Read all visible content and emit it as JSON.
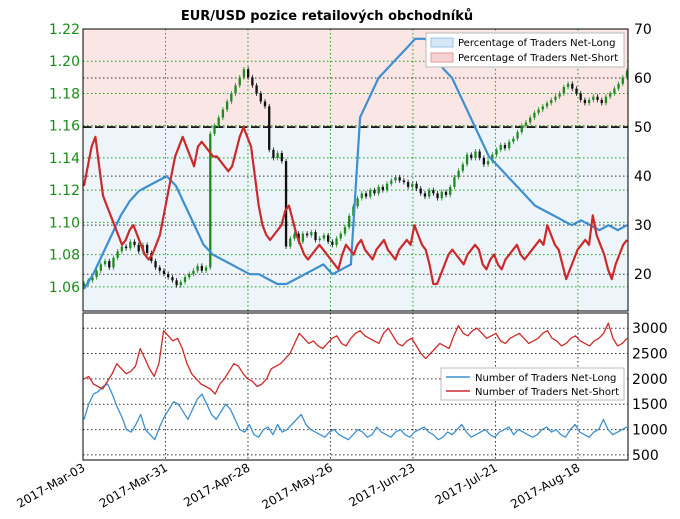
{
  "title": "EUR/USD pozice retailových obchodníků",
  "colors": {
    "candle_up": "#1f8a1f",
    "candle_down": "#111111",
    "net_long": "#3d8fd0",
    "net_short": "#cc2a2a",
    "long_fill": "#d6e8f7",
    "short_fill": "#f7d2d2",
    "grid_green": "#1fa01f",
    "grid_black": "#333333",
    "tick_green": "#1a8a1a"
  },
  "chart_data": [
    {
      "type": "line",
      "panel": "top",
      "title": "EUR/USD pozice retailových obchodníků",
      "x_tick_labels": [
        "2017-Mar-03",
        "2017-Mar-31",
        "2017-Apr-28",
        "2017-May-26",
        "2017-Jun-23",
        "2017-Jul-21",
        "2017-Aug-18"
      ],
      "x_range": [
        "2017-Mar-03",
        "2017-Sep-04"
      ],
      "price_axis": {
        "side": "left",
        "tick_labels": [
          "1.06",
          "1.08",
          "1.10",
          "1.12",
          "1.14",
          "1.16",
          "1.18",
          "1.20",
          "1.22"
        ],
        "range": [
          1.045,
          1.22
        ]
      },
      "percent_axis": {
        "side": "right",
        "tick_labels": [
          "20",
          "30",
          "40",
          "50",
          "60",
          "70"
        ],
        "range": [
          12.5,
          70
        ]
      },
      "reference_line": 50,
      "legend": {
        "position": "top-right",
        "entries": [
          "Percentage of Traders Net-Long",
          "Percentage of Traders Net-Short"
        ]
      },
      "candles_close": [
        1.062,
        1.064,
        1.066,
        1.07,
        1.074,
        1.076,
        1.072,
        1.078,
        1.082,
        1.085,
        1.084,
        1.088,
        1.086,
        1.082,
        1.086,
        1.081,
        1.076,
        1.072,
        1.07,
        1.068,
        1.066,
        1.064,
        1.061,
        1.063,
        1.066,
        1.068,
        1.07,
        1.073,
        1.07,
        1.072,
        1.155,
        1.16,
        1.165,
        1.17,
        1.175,
        1.18,
        1.185,
        1.19,
        1.195,
        1.19,
        1.185,
        1.18,
        1.175,
        1.172,
        1.145,
        1.14,
        1.143,
        1.138,
        1.085,
        1.09,
        1.093,
        1.088,
        1.093,
        1.092,
        1.094,
        1.089,
        1.09,
        1.092,
        1.088,
        1.086,
        1.09,
        1.093,
        1.097,
        1.104,
        1.11,
        1.115,
        1.118,
        1.116,
        1.12,
        1.118,
        1.122,
        1.12,
        1.124,
        1.126,
        1.128,
        1.126,
        1.125,
        1.122,
        1.124,
        1.121,
        1.118,
        1.116,
        1.12,
        1.118,
        1.115,
        1.119,
        1.117,
        1.122,
        1.128,
        1.132,
        1.136,
        1.142,
        1.14,
        1.144,
        1.14,
        1.136,
        1.138,
        1.142,
        1.145,
        1.148,
        1.146,
        1.15,
        1.152,
        1.156,
        1.16,
        1.162,
        1.165,
        1.168,
        1.17,
        1.172,
        1.174,
        1.176,
        1.178,
        1.18,
        1.184,
        1.186,
        1.183,
        1.18,
        1.176,
        1.174,
        1.176,
        1.178,
        1.176,
        1.174,
        1.178,
        1.18,
        1.183,
        1.186,
        1.19,
        1.194
      ],
      "series": [
        {
          "name": "Percentage of Traders Net-Long",
          "values": [
            17,
            20,
            24,
            28,
            32,
            35,
            37,
            38,
            39,
            40,
            38,
            34,
            30,
            26,
            24,
            23,
            22,
            21,
            20,
            20,
            19,
            18,
            18,
            19,
            20,
            21,
            22,
            20,
            21,
            22,
            52,
            56,
            60,
            62,
            64,
            66,
            68,
            68,
            67,
            62,
            60,
            56,
            52,
            48,
            44,
            42,
            40,
            38,
            36,
            34,
            33,
            32,
            31,
            30,
            31,
            30,
            29,
            30,
            29,
            30
          ]
        },
        {
          "name": "Percentage of Traders Net-Short",
          "values": [
            38,
            42,
            46,
            48,
            42,
            36,
            34,
            32,
            30,
            28,
            26,
            27,
            29,
            30,
            28,
            26,
            24,
            23,
            24,
            26,
            28,
            32,
            36,
            40,
            44,
            46,
            48,
            46,
            44,
            42,
            46,
            47,
            46,
            45,
            44,
            44,
            43,
            42,
            41,
            42,
            45,
            48,
            50,
            48,
            46,
            40,
            34,
            30,
            28,
            27,
            28,
            29,
            30,
            33,
            34,
            31,
            28,
            26,
            24,
            23,
            24,
            25,
            26,
            25,
            24,
            23,
            22,
            21,
            24,
            26,
            25,
            24,
            26,
            27,
            25,
            24,
            23,
            25,
            26,
            27,
            25,
            24,
            23,
            25,
            26,
            27,
            26,
            30,
            28,
            26,
            25,
            22,
            18,
            18,
            20,
            22,
            24,
            25,
            24,
            23,
            22,
            24,
            25,
            26,
            25,
            22,
            21,
            23,
            24,
            22,
            21,
            23,
            24,
            25,
            26,
            24,
            23,
            24,
            25,
            26,
            27,
            26,
            30,
            28,
            26,
            25,
            22,
            19,
            21,
            23,
            25,
            26,
            27,
            26,
            32,
            28,
            26,
            24,
            21,
            19,
            22,
            24,
            26,
            27
          ]
        }
      ]
    },
    {
      "type": "line",
      "panel": "bottom",
      "x_tick_labels": [
        "2017-Mar-03",
        "2017-Mar-31",
        "2017-Apr-28",
        "2017-May-26",
        "2017-Jun-23",
        "2017-Jul-21",
        "2017-Aug-18"
      ],
      "y_axis": {
        "side": "right",
        "tick_labels": [
          "500",
          "1000",
          "1500",
          "2000",
          "2500",
          "3000"
        ],
        "range": [
          400,
          3300
        ]
      },
      "legend": {
        "position": "center-right",
        "entries": [
          "Number of Traders Net-Long",
          "Number of Traders Net-Short"
        ]
      },
      "series": [
        {
          "name": "Number of Traders Net-Long",
          "values": [
            1200,
            1500,
            1700,
            1750,
            1850,
            1900,
            1700,
            1450,
            1250,
            1000,
            950,
            1100,
            1300,
            1000,
            900,
            800,
            1050,
            1250,
            1400,
            1550,
            1500,
            1350,
            1200,
            1400,
            1600,
            1700,
            1500,
            1300,
            1200,
            1350,
            1500,
            1400,
            1200,
            1000,
            950,
            1100,
            900,
            850,
            1000,
            1050,
            900,
            1100,
            950,
            1000,
            1100,
            1200,
            1300,
            1100,
            1000,
            950,
            900,
            850,
            950,
            1000,
            900,
            850,
            800,
            900,
            1000,
            950,
            850,
            900,
            1050,
            950,
            900,
            850,
            950,
            1000,
            900,
            850,
            950,
            1000,
            1050,
            950,
            900,
            800,
            850,
            950,
            900,
            1000,
            1100,
            950,
            850,
            900,
            950,
            1000,
            900,
            850,
            950,
            1000,
            1050,
            900,
            1000,
            950,
            900,
            850,
            900,
            1000,
            1050,
            950,
            1000,
            900,
            850,
            1000,
            1100,
            950,
            900,
            850,
            950,
            1000,
            1200,
            1000,
            900,
            950,
            1000,
            1050
          ]
        },
        {
          "name": "Number of Traders Net-Short",
          "values": [
            2000,
            2050,
            1900,
            1850,
            1800,
            1950,
            2100,
            2300,
            2200,
            2100,
            2150,
            2250,
            2600,
            2400,
            2200,
            2050,
            2300,
            2950,
            2850,
            2750,
            2800,
            2600,
            2300,
            2100,
            2000,
            1900,
            1850,
            1800,
            1700,
            1900,
            2000,
            2150,
            2300,
            2250,
            2100,
            2000,
            1950,
            1850,
            1900,
            2000,
            2200,
            2250,
            2300,
            2400,
            2500,
            2700,
            2900,
            2800,
            2700,
            2750,
            2650,
            2600,
            2700,
            2800,
            2850,
            2700,
            2650,
            2800,
            2900,
            2950,
            2850,
            2800,
            2750,
            2700,
            2900,
            3000,
            2850,
            2700,
            2650,
            2750,
            2800,
            2650,
            2500,
            2400,
            2500,
            2600,
            2700,
            2650,
            2600,
            2850,
            3050,
            2900,
            2850,
            2950,
            3000,
            2900,
            2800,
            2850,
            2900,
            2750,
            2700,
            2800,
            2850,
            2900,
            2800,
            2700,
            2750,
            2800,
            2900,
            2950,
            2800,
            2750,
            2650,
            2700,
            2800,
            2850,
            2750,
            2700,
            2650,
            2750,
            2800,
            2900,
            3100,
            2800,
            2650,
            2700,
            2800
          ]
        }
      ]
    }
  ]
}
